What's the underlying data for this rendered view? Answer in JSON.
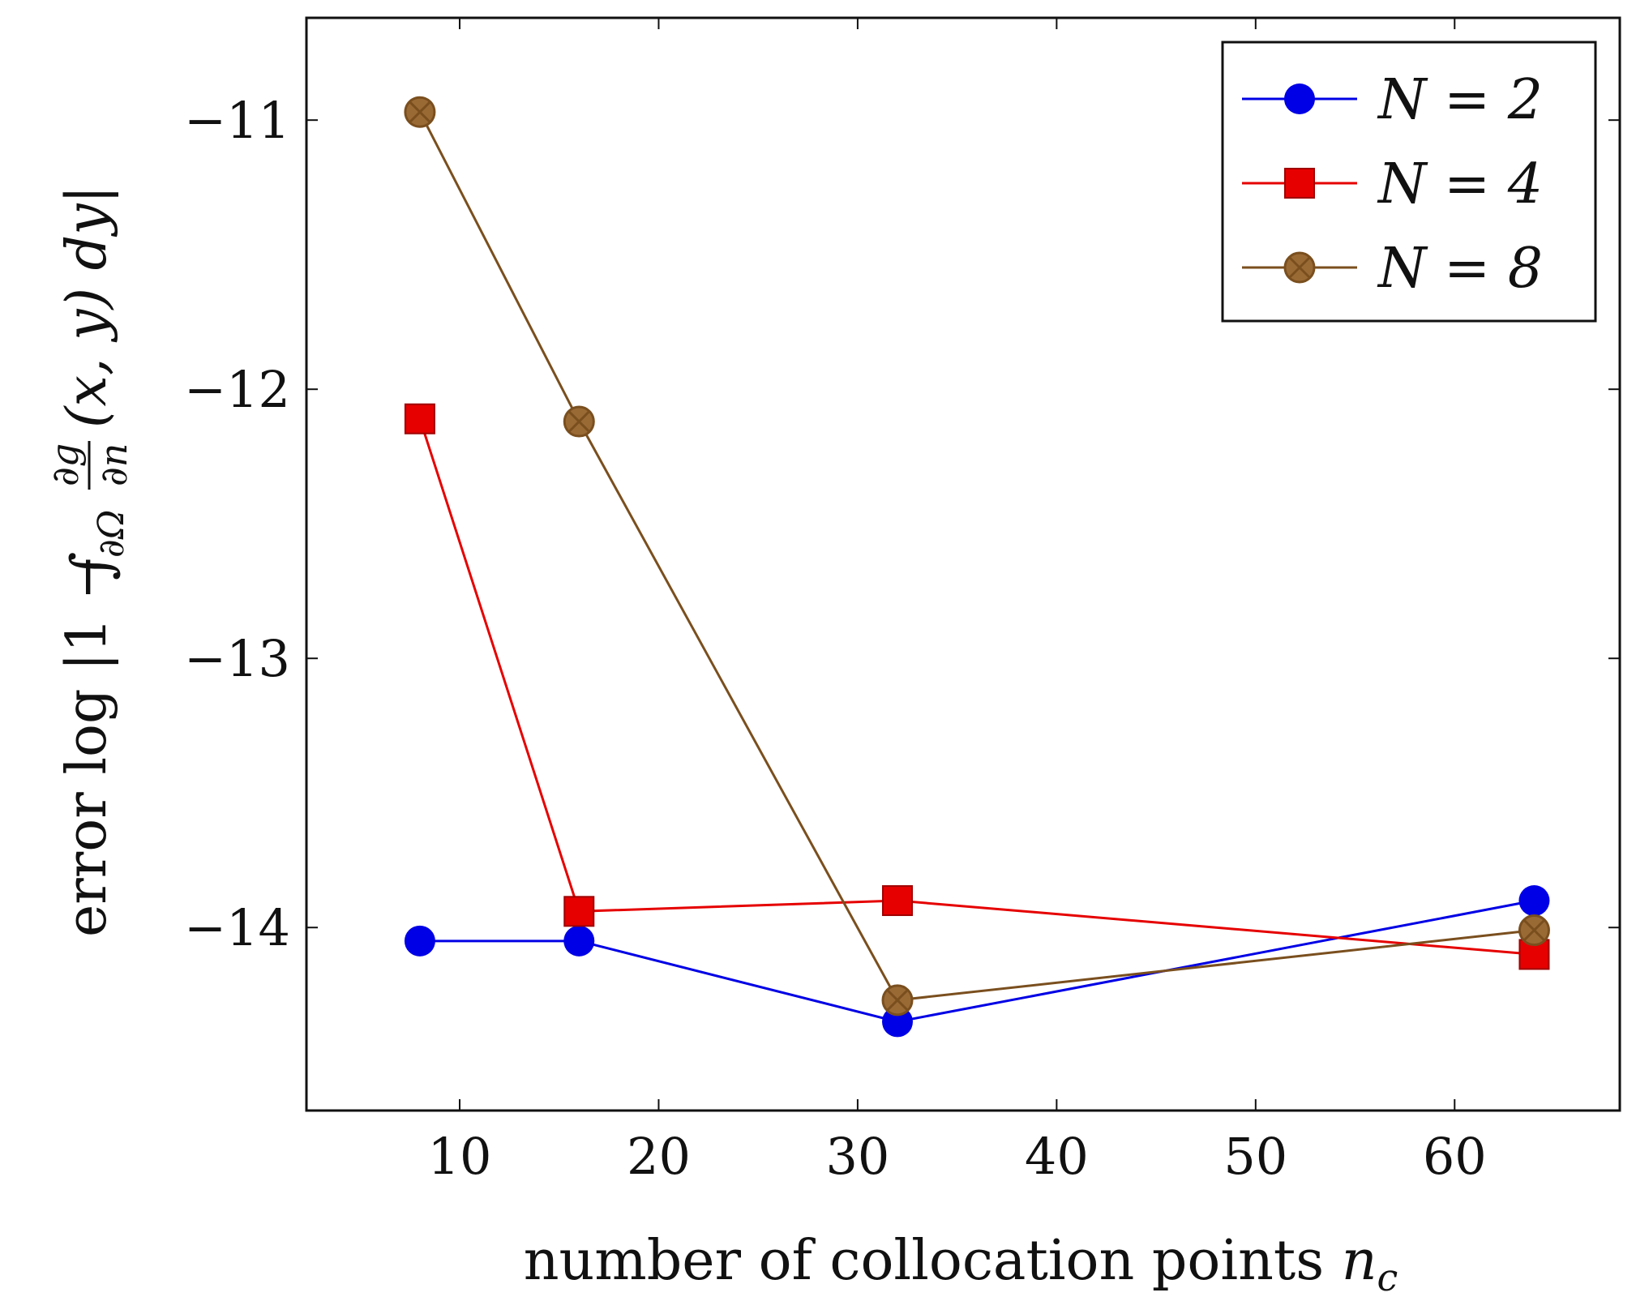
{
  "chart_data": {
    "type": "line",
    "title": "",
    "xlabel": "number of collocation points",
    "xlabel_symbol": "n",
    "xlabel_subscript": "c",
    "ylabel_prefix": "error log |1 −",
    "ylabel_integral": "∫",
    "ylabel_domain": "∂Ω",
    "ylabel_frac_num": "∂g",
    "ylabel_frac_den": "∂n",
    "ylabel_args": "(x, y) dy|",
    "xlim": [
      2.3,
      68.3
    ],
    "ylim": [
      -14.68,
      -10.62
    ],
    "xticks": [
      10,
      20,
      30,
      40,
      50,
      60
    ],
    "xtick_labels": [
      "10",
      "20",
      "30",
      "40",
      "50",
      "60"
    ],
    "yticks": [
      -11,
      -12,
      -13,
      -14
    ],
    "ytick_labels": [
      "−11",
      "−12",
      "−13",
      "−14"
    ],
    "x": [
      8,
      16,
      32,
      64
    ],
    "legend_position": "top-right",
    "series": [
      {
        "name": "N = 2",
        "color": "#0000e6",
        "marker": "circle",
        "values": [
          -14.05,
          -14.05,
          -14.35,
          -13.9
        ]
      },
      {
        "name": "N = 4",
        "color": "#e60000",
        "marker": "square",
        "values": [
          -12.11,
          -13.94,
          -13.9,
          -14.1
        ]
      },
      {
        "name": "N = 8",
        "color": "#7a4f1e",
        "fill": "#9a6a35",
        "marker": "circle-x",
        "values": [
          -10.97,
          -12.12,
          -14.27,
          -14.01
        ]
      }
    ]
  }
}
